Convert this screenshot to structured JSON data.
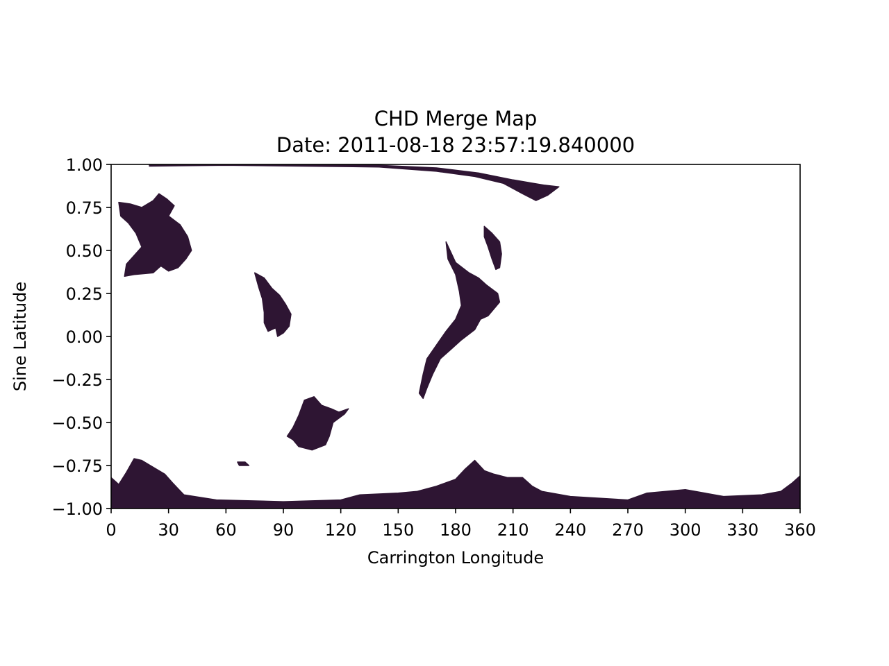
{
  "chart_data": {
    "type": "heatmap",
    "title": "CHD Merge Map",
    "subtitle": "Date: 2011-08-18 23:57:19.840000",
    "xlabel": "Carrington Longitude",
    "ylabel": "Sine Latitude",
    "xlim": [
      0,
      360
    ],
    "ylim": [
      -1.0,
      1.0
    ],
    "xticks": [
      "0",
      "30",
      "60",
      "90",
      "120",
      "150",
      "180",
      "210",
      "240",
      "270",
      "300",
      "330",
      "360"
    ],
    "yticks": [
      "1.00",
      "0.75",
      "0.50",
      "0.25",
      "0.00",
      "−0.25",
      "−0.50",
      "−0.75",
      "−1.00"
    ],
    "grid": false,
    "colors": {
      "hole": "#2e1533",
      "highlight": "#c44a52",
      "background": "#ffffff"
    },
    "regions": [
      {
        "name": "north polar band",
        "points": [
          [
            20,
            0.99
          ],
          [
            60,
            0.995
          ],
          [
            100,
            0.99
          ],
          [
            140,
            0.985
          ],
          [
            170,
            0.96
          ],
          [
            190,
            0.93
          ],
          [
            205,
            0.89
          ],
          [
            215,
            0.83
          ],
          [
            222,
            0.79
          ],
          [
            228,
            0.82
          ],
          [
            234,
            0.87
          ],
          [
            226,
            0.88
          ],
          [
            210,
            0.91
          ],
          [
            192,
            0.95
          ],
          [
            170,
            0.98
          ],
          [
            140,
            0.995
          ],
          [
            20,
            1.0
          ]
        ]
      },
      {
        "name": "NW hole",
        "points": [
          [
            4,
            0.78
          ],
          [
            10,
            0.77
          ],
          [
            16,
            0.75
          ],
          [
            22,
            0.79
          ],
          [
            25,
            0.83
          ],
          [
            29,
            0.8
          ],
          [
            33,
            0.76
          ],
          [
            30,
            0.7
          ],
          [
            36,
            0.65
          ],
          [
            40,
            0.58
          ],
          [
            42,
            0.5
          ],
          [
            39,
            0.45
          ],
          [
            35,
            0.4
          ],
          [
            30,
            0.38
          ],
          [
            26,
            0.41
          ],
          [
            22,
            0.37
          ],
          [
            12,
            0.36
          ],
          [
            7,
            0.35
          ],
          [
            8,
            0.42
          ],
          [
            12,
            0.47
          ],
          [
            16,
            0.52
          ],
          [
            13,
            0.6
          ],
          [
            9,
            0.66
          ],
          [
            5,
            0.7
          ]
        ]
      },
      {
        "name": "hole near 85",
        "points": [
          [
            75,
            0.37
          ],
          [
            80,
            0.34
          ],
          [
            84,
            0.28
          ],
          [
            88,
            0.24
          ],
          [
            91,
            0.19
          ],
          [
            94,
            0.13
          ],
          [
            93,
            0.06
          ],
          [
            90,
            0.02
          ],
          [
            87,
            0.0
          ],
          [
            86,
            0.05
          ],
          [
            82,
            0.03
          ],
          [
            80,
            0.08
          ],
          [
            80,
            0.14
          ],
          [
            79,
            0.22
          ],
          [
            77,
            0.29
          ]
        ]
      },
      {
        "name": "equatorial hole",
        "points": [
          [
            175,
            0.55
          ],
          [
            180,
            0.43
          ],
          [
            187,
            0.37
          ],
          [
            192,
            0.34
          ],
          [
            196,
            0.3
          ],
          [
            202,
            0.25
          ],
          [
            203,
            0.2
          ],
          [
            200,
            0.16
          ],
          [
            197,
            0.12
          ],
          [
            193,
            0.1
          ],
          [
            190,
            0.04
          ],
          [
            183,
            -0.02
          ],
          [
            178,
            -0.07
          ],
          [
            172,
            -0.13
          ],
          [
            168,
            -0.22
          ],
          [
            165,
            -0.3
          ],
          [
            163,
            -0.36
          ],
          [
            161,
            -0.33
          ],
          [
            163,
            -0.22
          ],
          [
            165,
            -0.13
          ],
          [
            170,
            -0.05
          ],
          [
            175,
            0.03
          ],
          [
            180,
            0.1
          ],
          [
            183,
            0.18
          ],
          [
            182,
            0.26
          ],
          [
            180,
            0.36
          ],
          [
            176,
            0.45
          ]
        ]
      },
      {
        "name": "hole near 200",
        "points": [
          [
            195,
            0.64
          ],
          [
            199,
            0.6
          ],
          [
            203,
            0.55
          ],
          [
            204,
            0.48
          ],
          [
            203,
            0.4
          ],
          [
            201,
            0.39
          ],
          [
            199,
            0.45
          ],
          [
            197,
            0.52
          ],
          [
            195,
            0.58
          ]
        ]
      },
      {
        "name": "southern hole",
        "points": [
          [
            101,
            -0.37
          ],
          [
            106,
            -0.35
          ],
          [
            110,
            -0.4
          ],
          [
            115,
            -0.42
          ],
          [
            119,
            -0.44
          ],
          [
            124,
            -0.42
          ],
          [
            122,
            -0.45
          ],
          [
            116,
            -0.5
          ],
          [
            114,
            -0.58
          ],
          [
            112,
            -0.63
          ],
          [
            105,
            -0.66
          ],
          [
            98,
            -0.64
          ],
          [
            95,
            -0.6
          ],
          [
            92,
            -0.58
          ],
          [
            95,
            -0.53
          ],
          [
            98,
            -0.46
          ]
        ]
      },
      {
        "name": "south polar band",
        "points": [
          [
            0,
            -0.82
          ],
          [
            4,
            -0.86
          ],
          [
            8,
            -0.79
          ],
          [
            12,
            -0.71
          ],
          [
            16,
            -0.72
          ],
          [
            22,
            -0.76
          ],
          [
            28,
            -0.8
          ],
          [
            32,
            -0.85
          ],
          [
            38,
            -0.92
          ],
          [
            55,
            -0.95
          ],
          [
            90,
            -0.96
          ],
          [
            120,
            -0.95
          ],
          [
            130,
            -0.92
          ],
          [
            150,
            -0.91
          ],
          [
            160,
            -0.9
          ],
          [
            170,
            -0.87
          ],
          [
            180,
            -0.83
          ],
          [
            185,
            -0.77
          ],
          [
            190,
            -0.72
          ],
          [
            195,
            -0.78
          ],
          [
            200,
            -0.8
          ],
          [
            207,
            -0.82
          ],
          [
            215,
            -0.82
          ],
          [
            220,
            -0.87
          ],
          [
            225,
            -0.9
          ],
          [
            240,
            -0.93
          ],
          [
            270,
            -0.95
          ],
          [
            280,
            -0.91
          ],
          [
            300,
            -0.89
          ],
          [
            320,
            -0.93
          ],
          [
            340,
            -0.92
          ],
          [
            350,
            -0.9
          ],
          [
            356,
            -0.85
          ],
          [
            360,
            -0.81
          ],
          [
            360,
            -1.0
          ],
          [
            0,
            -1.0
          ]
        ]
      },
      {
        "name": "small patch",
        "points": [
          [
            66,
            -0.73
          ],
          [
            70,
            -0.73
          ],
          [
            72,
            -0.75
          ],
          [
            67,
            -0.75
          ]
        ]
      }
    ]
  }
}
